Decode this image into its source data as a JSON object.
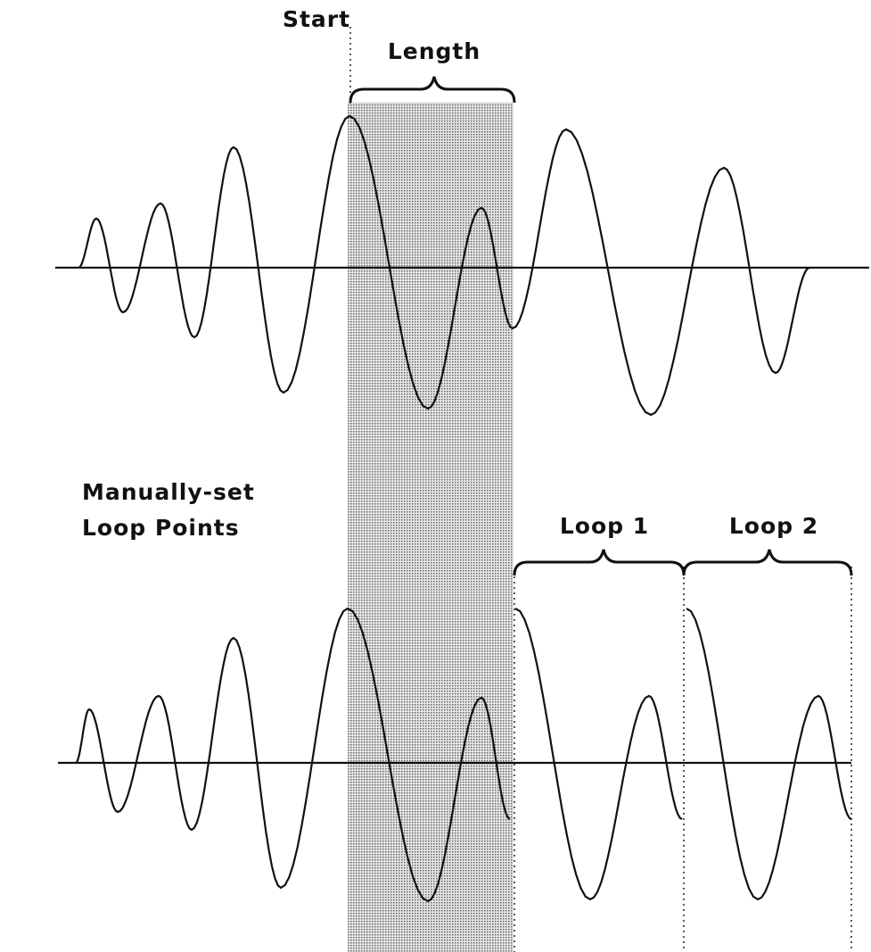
{
  "labels": {
    "start": "Start",
    "length": "Length",
    "manual_line1": "Manually-set",
    "manual_line2": "Loop Points",
    "loop1": "Loop 1",
    "loop2": "Loop 2"
  }
}
